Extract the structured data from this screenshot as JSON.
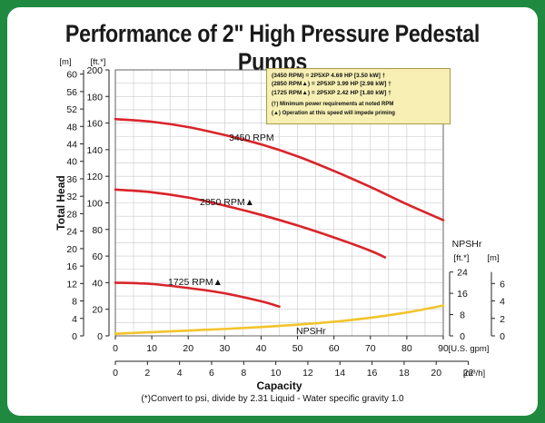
{
  "title": "Performance of 2\" High Pressure Pedestal Pumps",
  "legend_box": {
    "rows": [
      "(3450 RPM)       = 2P5XP    4.69 HP [3.50 kW] †",
      "(2850 RPM▲) = 2P5XP    3.99 HP [2.98 kW] †",
      "(1725 RPM▲) = 2P5XP    2.42 HP [1.80 kW] †"
    ],
    "notes": [
      "(†) Minimum power requirements at noted RPM",
      "(▲) Operation at this speed will impede priming"
    ]
  },
  "footnote": "(*)Convert to psi, divide by 2.31     Liquid - Water specific gravity 1.0",
  "colors": {
    "head_curve": "#d9242a",
    "npsh_curve": "#f2c42c",
    "frame": "#1f8a3f"
  },
  "chart_data": {
    "type": "line",
    "xlabel": "Capacity",
    "x_units_primary": "[U.S. gpm]",
    "x_units_secondary": "[m³/h]",
    "xlim": [
      0,
      90
    ],
    "x_ticks": [
      "0",
      "10",
      "20",
      "30",
      "40",
      "50",
      "60",
      "70",
      "80",
      "90"
    ],
    "x2_ticks": [
      "0",
      "2",
      "4",
      "6",
      "8",
      "10",
      "12",
      "14",
      "16",
      "18",
      "20",
      "22"
    ],
    "ylabel": "Total Head",
    "y_units_ft": "[ft.*]",
    "y_units_m": "[m]",
    "ylim": [
      0,
      200
    ],
    "y_ticks_ft": [
      "0",
      "20",
      "40",
      "60",
      "80",
      "100",
      "120",
      "140",
      "160",
      "180",
      "200"
    ],
    "y_ticks_m": [
      "0",
      "4",
      "8",
      "12",
      "16",
      "20",
      "24",
      "28",
      "32",
      "36",
      "40",
      "44",
      "48",
      "52",
      "56",
      "60"
    ],
    "right_axis_title": "NPSHr",
    "right_units_ft": "[ft.*]",
    "right_units_m": "[m]",
    "right_ticks_ft": [
      "0",
      "8",
      "16",
      "24"
    ],
    "right_ticks_m": [
      "0",
      "2",
      "4",
      "6"
    ],
    "right_ylim_ft": [
      0,
      24
    ],
    "series": [
      {
        "name": "3450 RPM",
        "label": "3450 RPM",
        "x": [
          0,
          10,
          20,
          30,
          40,
          50,
          60,
          70,
          80,
          90
        ],
        "y": [
          163,
          161,
          157,
          151,
          144,
          135,
          124,
          112,
          99,
          87
        ]
      },
      {
        "name": "2850 RPM",
        "label": "2850 RPM▲",
        "x": [
          0,
          10,
          20,
          30,
          40,
          50,
          60,
          70,
          74
        ],
        "y": [
          110,
          108,
          104,
          98,
          91,
          83,
          74,
          64,
          59
        ]
      },
      {
        "name": "1725 RPM",
        "label": "1725 RPM▲",
        "x": [
          0,
          10,
          20,
          30,
          40,
          45
        ],
        "y": [
          40,
          39,
          36,
          32,
          26,
          22
        ]
      },
      {
        "name": "NPSHr",
        "label": "NPSHr",
        "axis": "right",
        "x": [
          0,
          10,
          20,
          30,
          40,
          50,
          60,
          70,
          80,
          90
        ],
        "y": [
          0.8,
          1.4,
          2.0,
          2.6,
          3.3,
          4.2,
          5.3,
          6.8,
          8.8,
          11.4
        ]
      }
    ]
  }
}
